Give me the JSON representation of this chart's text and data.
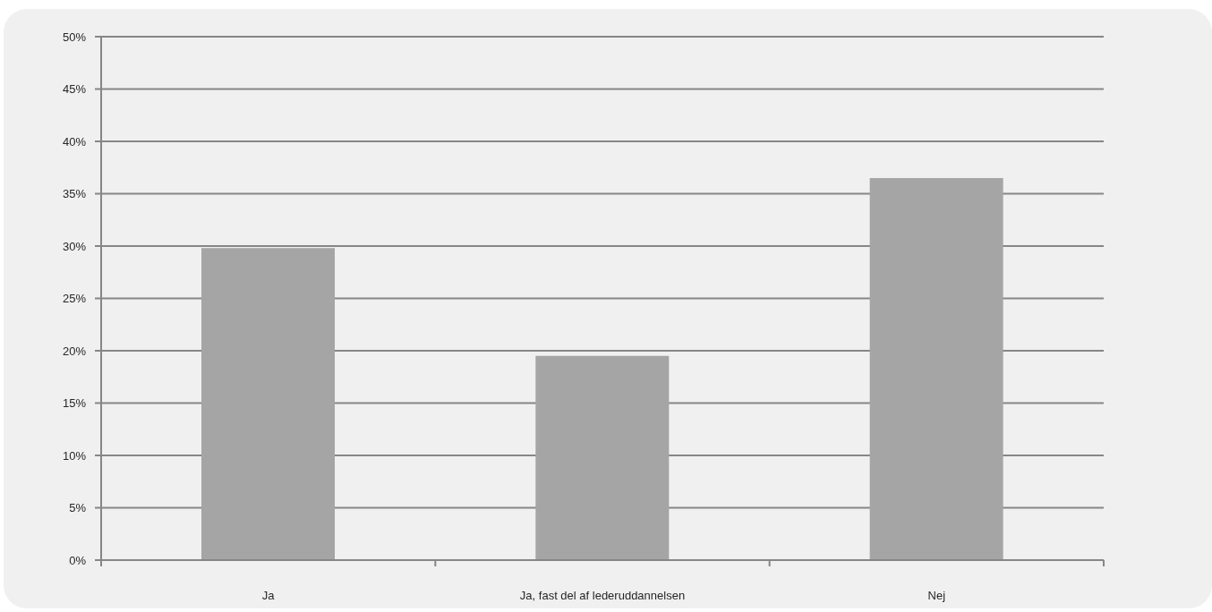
{
  "chart_data": {
    "type": "bar",
    "categories": [
      "Ja",
      "Ja, fast del af lederuddannelsen",
      "Nej"
    ],
    "values": [
      29.8,
      19.5,
      36.5
    ],
    "color": "#a5a5a5",
    "ylim": [
      0,
      50
    ],
    "yticks": [
      {
        "value": 0,
        "label": "0%"
      },
      {
        "value": 5,
        "label": "5%"
      },
      {
        "value": 10,
        "label": "10%"
      },
      {
        "value": 15,
        "label": "15%"
      },
      {
        "value": 20,
        "label": "20%"
      },
      {
        "value": 25,
        "label": "25%"
      },
      {
        "value": 30,
        "label": "30%"
      },
      {
        "value": 35,
        "label": "35%"
      },
      {
        "value": 40,
        "label": "40%"
      },
      {
        "value": 45,
        "label": "45%"
      },
      {
        "value": 50,
        "label": "50%"
      }
    ],
    "grid": "y"
  }
}
